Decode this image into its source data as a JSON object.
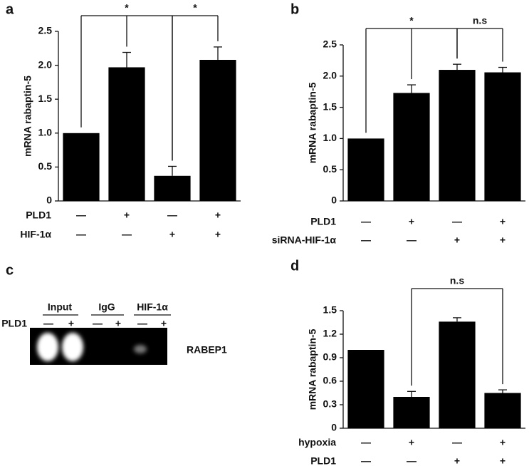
{
  "chart_data": [
    {
      "type": "bar",
      "panel": "a",
      "ylabel": "mRNA rabaptin-5",
      "color": "#000000",
      "categories": [
        null,
        null,
        null,
        null
      ],
      "values": [
        1.0,
        1.97,
        0.37,
        2.08
      ],
      "errors": [
        null,
        0.22,
        0.14,
        0.19
      ],
      "ylim": [
        0,
        2.5
      ],
      "yticks": [
        0,
        0.5,
        {
          "value": 1,
          "label": "1.0"
        },
        1.5,
        {
          "value": 2,
          "label": "2.0"
        },
        2.5
      ],
      "conditions": [
        {
          "name": "PLD1",
          "values": [
            "—",
            "+",
            "—",
            "+"
          ]
        },
        {
          "name": "HIF-1α",
          "values": [
            "—",
            "—",
            "+",
            "+"
          ]
        }
      ],
      "comparisons": [
        {
          "bars": [
            0,
            1,
            2
          ],
          "label": "*"
        },
        {
          "bars": [
            2,
            3
          ],
          "label": "*"
        }
      ]
    },
    {
      "type": "bar",
      "panel": "b",
      "ylabel": "mRNA rabaptin-5",
      "color": "#000000",
      "categories": [
        null,
        null,
        null,
        null
      ],
      "values": [
        1.0,
        1.73,
        2.1,
        2.06
      ],
      "errors": [
        null,
        0.13,
        0.09,
        0.08
      ],
      "ylim": [
        0,
        2.5
      ],
      "yticks": [
        0,
        0.5,
        {
          "value": 1,
          "label": "1.0"
        },
        1.5,
        {
          "value": 2,
          "label": "2.0"
        },
        2.5
      ],
      "conditions": [
        {
          "name": "PLD1",
          "values": [
            "—",
            "+",
            "—",
            "+"
          ]
        },
        {
          "name": "siRNA-HIF-1α",
          "values": [
            "—",
            "—",
            "+",
            "+"
          ]
        }
      ],
      "comparisons": [
        {
          "bars": [
            0,
            1,
            2
          ],
          "label": "*"
        },
        {
          "bars": [
            2,
            3
          ],
          "label": "n.s"
        }
      ]
    },
    {
      "type": "bar",
      "panel": "d",
      "ylabel": "mRNA rabaptin-5",
      "color": "#000000",
      "categories": [
        null,
        null,
        null,
        null
      ],
      "values": [
        1.0,
        0.4,
        1.36,
        0.45
      ],
      "errors": [
        null,
        0.07,
        0.05,
        0.04
      ],
      "ylim": [
        0,
        1.5
      ],
      "yticks": [
        0,
        0.3,
        0.6,
        0.9,
        1.2,
        1.5
      ],
      "conditions": [
        {
          "name": "hypoxia",
          "values": [
            "—",
            "+",
            "—",
            "+"
          ]
        },
        {
          "name": "PLD1",
          "values": [
            "—",
            "—",
            "+",
            "+"
          ]
        }
      ],
      "comparisons": [
        {
          "bars": [
            1,
            3
          ],
          "label": "n.s"
        }
      ]
    }
  ],
  "gel": {
    "panel": "c",
    "lanes": [
      "Input",
      "IgG",
      "HIF-1α"
    ],
    "row_label": "PLD1",
    "row_values": [
      "—",
      "+",
      "—",
      "+",
      "—",
      "+"
    ],
    "band_label": "RABEP1"
  }
}
